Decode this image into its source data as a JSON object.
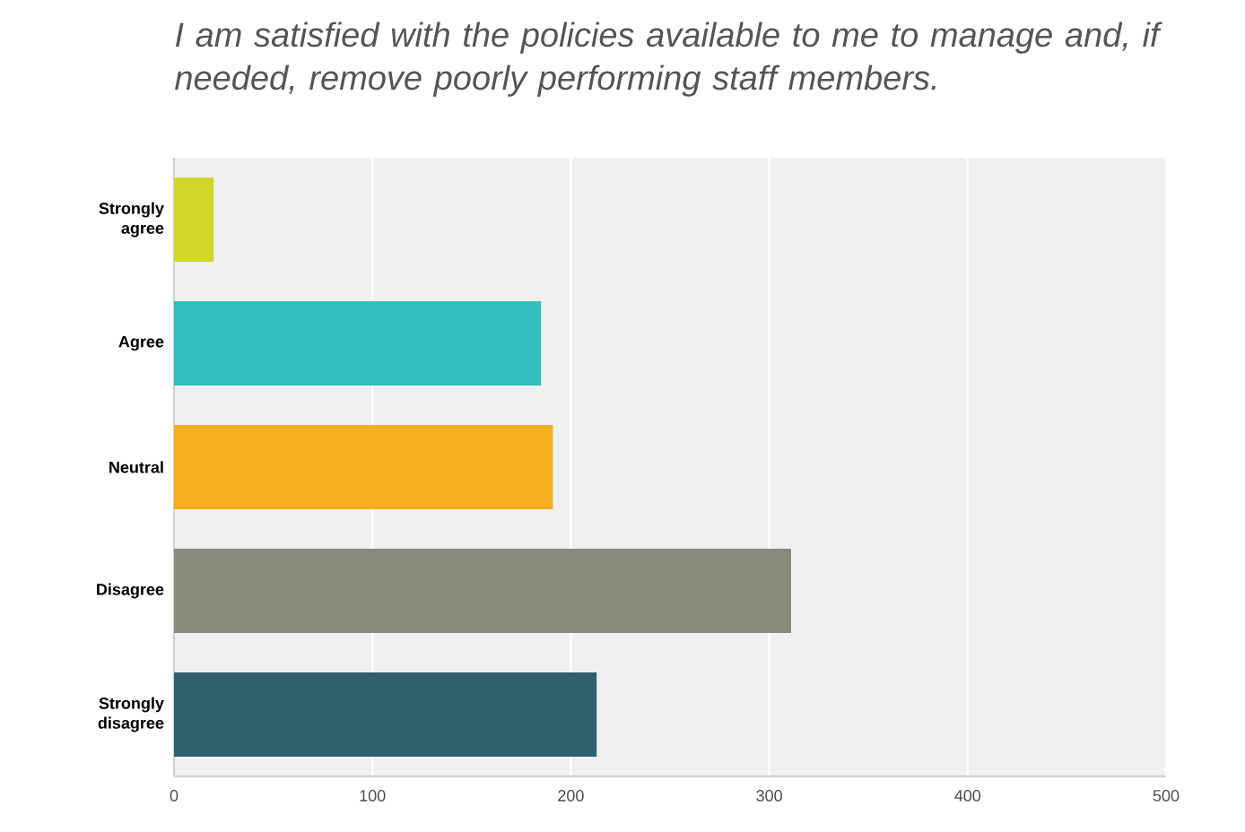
{
  "chart_data": {
    "type": "bar",
    "orientation": "horizontal",
    "title": "I am satisfied with the policies available to me to manage and, if needed, remove poorly performing staff members.",
    "categories": [
      "Strongly agree",
      "Agree",
      "Neutral",
      "Disagree",
      "Strongly disagree"
    ],
    "values": [
      20,
      185,
      191,
      311,
      213
    ],
    "colors": [
      "#d1d62a",
      "#33bdbf",
      "#f6af1f",
      "#898a79",
      "#2e606d"
    ],
    "xlim": [
      0,
      500
    ],
    "xticks": [
      0,
      100,
      200,
      300,
      400,
      500
    ],
    "grid": "x"
  }
}
